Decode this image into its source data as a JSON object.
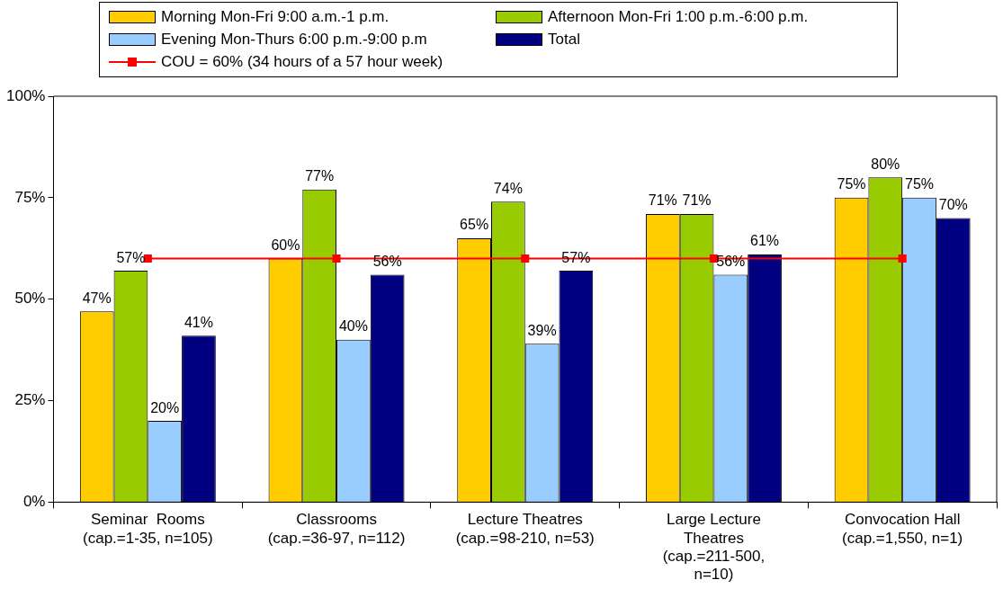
{
  "chart_data": {
    "type": "bar",
    "categories": [
      "Seminar  Rooms\n(cap.=1-35, n=105)",
      "Classrooms\n(cap.=36-97, n=112)",
      "Lecture Theatres\n(cap.=98-210, n=53)",
      "Large Lecture\nTheatres\n(cap.=211-500,\nn=10)",
      "Convocation Hall\n(cap.=1,550, n=1)"
    ],
    "series": [
      {
        "name": "Morning Mon-Fri 9:00 a.m.-1 p.m.",
        "color": "#ffcc00",
        "values": [
          47,
          60,
          65,
          71,
          75
        ],
        "value_labels": [
          "47%",
          "60%",
          "65%",
          "71%",
          "75%"
        ]
      },
      {
        "name": "Afternoon Mon-Fri 1:00 p.m.-6:00 p.m.",
        "color": "#99cc00",
        "values": [
          57,
          77,
          74,
          71,
          80
        ],
        "value_labels": [
          "57%",
          "77%",
          "74%",
          "71%",
          "80%"
        ]
      },
      {
        "name": "Evening Mon-Thurs 6:00 p.m.-9:00 p.m",
        "color": "#99ccff",
        "values": [
          20,
          40,
          39,
          56,
          75
        ],
        "value_labels": [
          "20%",
          "40%",
          "39%",
          "56%",
          "75%"
        ]
      },
      {
        "name": "Total",
        "color": "#000080",
        "values": [
          41,
          56,
          57,
          61,
          70
        ],
        "value_labels": [
          "41%",
          "56%",
          "57%",
          "61%",
          "70%"
        ]
      },
      {
        "name": "COU = 60% (34 hours of a 57 hour week)",
        "type": "line",
        "color": "#ff0000",
        "marker": "square",
        "values": [
          60,
          60,
          60,
          60,
          60
        ]
      }
    ],
    "ylim": [
      0,
      100
    ],
    "yticks": [
      {
        "value": 0,
        "label": "0%"
      },
      {
        "value": 25,
        "label": "25%"
      },
      {
        "value": 50,
        "label": "50%"
      },
      {
        "value": 75,
        "label": "75%"
      },
      {
        "value": 100,
        "label": "100%"
      }
    ],
    "grid": false,
    "legend": "top"
  }
}
